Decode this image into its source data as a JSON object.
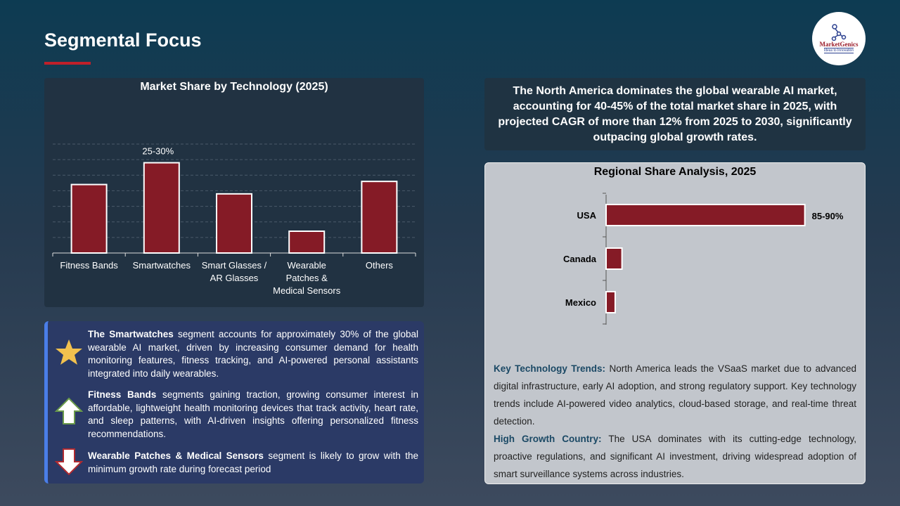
{
  "header": {
    "title": "Segmental Focus",
    "logo_text": "MarketGenics",
    "logo_tagline": "Ideas to Innovation"
  },
  "chart_data": [
    {
      "type": "bar",
      "title": "Market Share by Technology (2025)",
      "categories": [
        "Fitness Bands",
        "Smartwatches",
        "Smart Glasses / AR Glasses",
        "Wearable Patches & Medical Sensors",
        "Others"
      ],
      "category_lines": [
        [
          "Fitness Bands"
        ],
        [
          "Smartwatches"
        ],
        [
          "Smart Glasses /",
          "AR Glasses"
        ],
        [
          "Wearable",
          "Patches &",
          "Medical Sensors"
        ],
        [
          "Others"
        ]
      ],
      "values": [
        22,
        29,
        19,
        7,
        23
      ],
      "data_labels": [
        "",
        "25-30%",
        "",
        "",
        ""
      ],
      "ylim": [
        0,
        35
      ],
      "grid": true,
      "bar_color": "#851b26"
    },
    {
      "type": "bar",
      "orientation": "horizontal",
      "title": "Regional Share Analysis, 2025",
      "categories": [
        "USA",
        "Canada",
        "Mexico"
      ],
      "values": [
        87.5,
        7,
        4
      ],
      "data_labels": [
        "85-90%",
        "",
        ""
      ],
      "xlim": [
        0,
        100
      ],
      "bar_color": "#851b26"
    }
  ],
  "bullets": [
    {
      "icon": "star-icon",
      "bold": "The Smartwatches",
      "text": " segment accounts for approximately 30% of the global wearable AI market, driven by increasing consumer demand for health monitoring features, fitness tracking, and AI-powered personal assistants integrated into daily wearables."
    },
    {
      "icon": "arrow-up-icon",
      "bold": "Fitness Bands",
      "text": " segments gaining traction, growing consumer interest in affordable, lightweight health monitoring devices that track activity, heart rate, and sleep patterns, with AI-driven insights offering personalized fitness recommendations."
    },
    {
      "icon": "arrow-down-icon",
      "bold": "Wearable Patches & Medical Sensors",
      "text": " segment is likely to grow with the minimum growth rate during forecast period"
    }
  ],
  "north_america": "The North America dominates the global wearable AI market, accounting for 40-45% of the total market share in 2025, with projected CAGR of more than 12% from 2025 to 2030, significantly outpacing global growth rates.",
  "trends": {
    "label": "Key Technology Trends:",
    "text": " North America leads the VSaaS market due to advanced digital infrastructure, early AI adoption, and strong regulatory support. Key technology trends include AI-powered video analytics, cloud-based storage, and real-time threat detection."
  },
  "high_growth": {
    "label": "High Growth Country:",
    "text": " The USA dominates with its cutting-edge technology, proactive regulations, and significant AI investment, driving widespread adoption of smart surveillance systems across industries."
  }
}
